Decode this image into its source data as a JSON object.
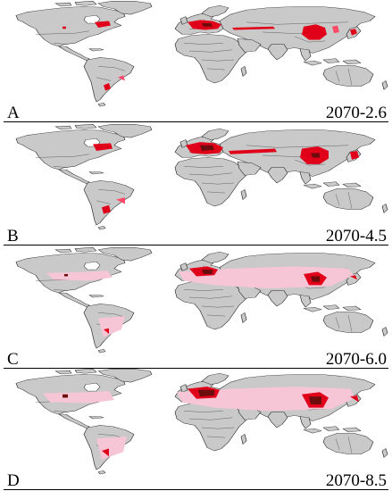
{
  "panels": [
    {
      "letter": "A",
      "scenario": "2070-2.6"
    },
    {
      "letter": "B",
      "scenario": "2070-4.5"
    },
    {
      "letter": "C",
      "scenario": "2070-6.0"
    },
    {
      "letter": "D",
      "scenario": "2070-8.5"
    }
  ],
  "colors": {
    "land": "#c9c9c9",
    "suitability_high": "#e0001a",
    "suitability_mid": "#ff4a6a",
    "suitability_low": "#f7c6d6",
    "suitability_core": "#6b0d0d",
    "background": "#ffffff"
  }
}
